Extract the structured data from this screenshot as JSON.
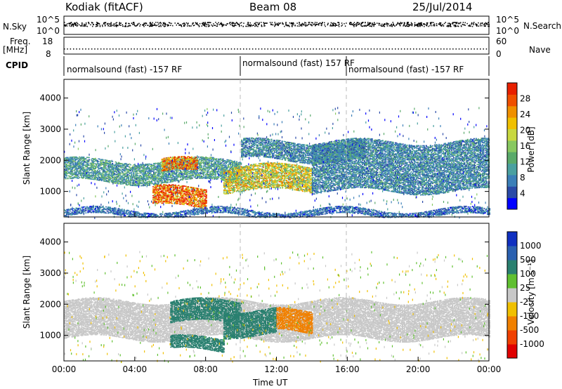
{
  "header": {
    "station": "Kodiak (fitACF)",
    "beam": "Beam 08",
    "date": "25/Jul/2014"
  },
  "strip_labels": {
    "nsky": "N.Sky",
    "nsky_ticks": [
      "10^5",
      "10^0"
    ],
    "nsearch": "N.Search",
    "nsearch_ticks": [
      "10^5",
      "10^0"
    ],
    "freq": "Freq.",
    "freq_unit": "[MHz]",
    "freq_ticks": [
      "18",
      "8"
    ],
    "nave": "Nave",
    "nave_ticks": [
      "60",
      "0"
    ],
    "cpid": "CPID"
  },
  "cpid_segments": [
    {
      "label": "normalsound (fast) -157 RF",
      "start_hour": 0
    },
    {
      "label": "normalsound (fast) 157 RF",
      "start_hour": 10
    },
    {
      "label": "normalsound (fast) -157 RF",
      "start_hour": 16
    }
  ],
  "chart_data": [
    {
      "type": "heatmap",
      "title": "Power",
      "xlabel": "",
      "ylabel": "Slant Range [km]",
      "x_ticks": [
        "00:00",
        "04:00",
        "08:00",
        "12:00",
        "16:00",
        "20:00",
        "00:00"
      ],
      "xlim_hours": [
        0,
        24
      ],
      "ylim": [
        180,
        4600
      ],
      "y_ticks": [
        1000,
        2000,
        3000,
        4000
      ],
      "colorbar": {
        "label": "Power [dB]",
        "ticks": [
          "28",
          "24",
          "20",
          "16",
          "12",
          "8",
          "4"
        ],
        "range": [
          0,
          30
        ],
        "colors": [
          "#0000ff",
          "#2a4aa8",
          "#3b7fb8",
          "#4aa0a0",
          "#5aaa6a",
          "#88c860",
          "#c8d840",
          "#f0c000",
          "#f09000",
          "#f05000",
          "#e82000"
        ]
      },
      "regions": [
        {
          "band": "low-range clutter",
          "hours": [
            0,
            24
          ],
          "range_km": [
            200,
            400
          ],
          "value": 6
        },
        {
          "band": "main band",
          "hours": [
            0,
            10
          ],
          "range_km": [
            1300,
            2000
          ],
          "value": 10
        },
        {
          "band": "morning echo",
          "hours": [
            5.5,
            7.5
          ],
          "range_km": [
            1600,
            2000
          ],
          "value": 24
        },
        {
          "band": "near echo",
          "hours": [
            5.0,
            8.0
          ],
          "range_km": [
            500,
            1100
          ],
          "value": 26
        },
        {
          "band": "midday echo",
          "hours": [
            9,
            14
          ],
          "range_km": [
            1000,
            1800
          ],
          "value": 18
        },
        {
          "band": "upper band",
          "hours": [
            10,
            17
          ],
          "range_km": [
            2000,
            2600
          ],
          "value": 8
        },
        {
          "band": "afternoon band",
          "hours": [
            14,
            24
          ],
          "range_km": [
            1000,
            2600
          ],
          "value": 8
        }
      ]
    },
    {
      "type": "heatmap",
      "title": "Velocity",
      "xlabel": "Time UT",
      "ylabel": "Slant Range [km]",
      "x_ticks": [
        "00:00",
        "04:00",
        "08:00",
        "12:00",
        "16:00",
        "20:00",
        "00:00"
      ],
      "xlim_hours": [
        0,
        24
      ],
      "ylim": [
        180,
        4600
      ],
      "y_ticks": [
        1000,
        2000,
        3000,
        4000
      ],
      "colorbar": {
        "label": "Velocity [m s⁻¹]",
        "ticks": [
          "1000",
          "500",
          "100",
          "25",
          "-25",
          "-100",
          "-500",
          "-1000"
        ],
        "colors": [
          "#1030c0",
          "#2a60b0",
          "#2a8070",
          "#60c030",
          "#c8c8c8",
          "#f0c000",
          "#f08000",
          "#f04000",
          "#e00000"
        ]
      },
      "regions": [
        {
          "band": "ground scatter",
          "hours": [
            0,
            24
          ],
          "range_km": [
            900,
            2100
          ],
          "value": 0
        },
        {
          "band": "morning flow",
          "hours": [
            6,
            10
          ],
          "range_km": [
            1400,
            2100
          ],
          "value": 150
        },
        {
          "band": "near flow",
          "hours": [
            6,
            9
          ],
          "range_km": [
            500,
            900
          ],
          "value": 150
        },
        {
          "band": "midday flow",
          "hours": [
            9,
            12
          ],
          "range_km": [
            1000,
            1800
          ],
          "value": 300
        },
        {
          "band": "afternoon flow",
          "hours": [
            12,
            14
          ],
          "range_km": [
            1100,
            1800
          ],
          "value": -300
        }
      ]
    }
  ]
}
